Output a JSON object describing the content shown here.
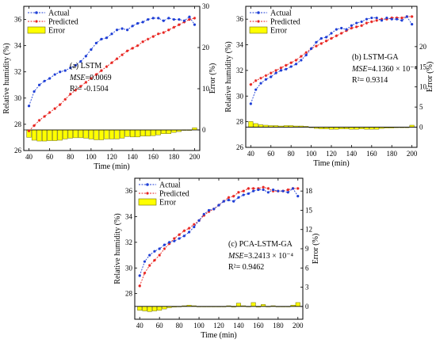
{
  "chart_data": [
    {
      "type": "line",
      "panel_label": "(a) LSTM",
      "mse_label": "MSE",
      "mse_value": "=0.0069",
      "r2_text": "R²= -0.1504",
      "xlabel": "Time (min)",
      "ylabel": "Relative humidity (%)",
      "y2label": "Error (%)",
      "xlim": [
        35,
        205
      ],
      "ylim": [
        26,
        37
      ],
      "y2lim": [
        -5,
        30
      ],
      "xticks": [
        40,
        60,
        80,
        100,
        120,
        140,
        160,
        180,
        200
      ],
      "yticks": [
        26,
        28,
        30,
        32,
        34,
        36
      ],
      "y2ticks": [
        0,
        10,
        20,
        30
      ],
      "legend": [
        "Actual",
        "Predicted",
        "Error"
      ],
      "colors": {
        "actual": "#1f3fd6",
        "predicted": "#e8231f",
        "error_fill": "#ffff00",
        "error_stroke": "#6b6b00"
      },
      "x": [
        40,
        45,
        50,
        55,
        60,
        65,
        70,
        75,
        80,
        85,
        90,
        95,
        100,
        105,
        110,
        115,
        120,
        125,
        130,
        135,
        140,
        145,
        150,
        155,
        160,
        165,
        170,
        175,
        180,
        185,
        190,
        195,
        200
      ],
      "series": [
        {
          "name": "Actual",
          "values": [
            29.4,
            30.5,
            31.0,
            31.3,
            31.5,
            31.8,
            32.0,
            32.1,
            32.3,
            32.5,
            32.8,
            33.2,
            33.7,
            34.2,
            34.5,
            34.6,
            34.9,
            35.2,
            35.3,
            35.2,
            35.5,
            35.7,
            35.8,
            36.0,
            36.1,
            36.1,
            35.9,
            36.1,
            36.0,
            36.0,
            35.9,
            36.2,
            35.6
          ]
        },
        {
          "name": "Predicted",
          "values": [
            27.5,
            27.9,
            28.3,
            28.6,
            28.9,
            29.2,
            29.5,
            29.9,
            30.3,
            30.6,
            30.9,
            31.2,
            31.5,
            31.8,
            32.1,
            32.4,
            32.7,
            33.0,
            33.3,
            33.6,
            33.8,
            34.0,
            34.3,
            34.5,
            34.7,
            34.9,
            35.0,
            35.2,
            35.4,
            35.6,
            35.8,
            36.0,
            36.1
          ]
        },
        {
          "name": "Error",
          "values": [
            -1.8,
            -2.5,
            -2.7,
            -2.7,
            -2.6,
            -2.6,
            -2.5,
            -2.2,
            -2.0,
            -1.9,
            -1.9,
            -2.0,
            -2.2,
            -2.4,
            -2.4,
            -2.2,
            -2.2,
            -2.2,
            -2.0,
            -1.6,
            -1.7,
            -1.7,
            -1.5,
            -1.5,
            -1.4,
            -1.2,
            -0.9,
            -0.9,
            -0.6,
            -0.4,
            -0.1,
            -0.1,
            0.5
          ]
        }
      ]
    },
    {
      "type": "line",
      "panel_label": "(b) LSTM-GA",
      "mse_label": "MSE",
      "mse_value": "=4.1360 × 10⁻⁴",
      "r2_text": "R²= 0.9314",
      "xlabel": "Time (min)",
      "ylabel": "Relative humidity (%)",
      "y2label": "Error (%)",
      "xlim": [
        35,
        205
      ],
      "ylim": [
        26,
        37
      ],
      "y2lim": [
        -5,
        30
      ],
      "xticks": [
        40,
        60,
        80,
        100,
        120,
        140,
        160,
        180,
        200
      ],
      "yticks": [
        26,
        28,
        30,
        32,
        34,
        36
      ],
      "y2ticks": [
        0,
        5,
        10,
        15,
        20
      ],
      "legend": [
        "Actual",
        "Predicted",
        "Error"
      ],
      "colors": {
        "actual": "#1f3fd6",
        "predicted": "#e8231f",
        "error_fill": "#ffff00",
        "error_stroke": "#6b6b00"
      },
      "x": [
        40,
        45,
        50,
        55,
        60,
        65,
        70,
        75,
        80,
        85,
        90,
        95,
        100,
        105,
        110,
        115,
        120,
        125,
        130,
        135,
        140,
        145,
        150,
        155,
        160,
        165,
        170,
        175,
        180,
        185,
        190,
        195,
        200
      ],
      "series": [
        {
          "name": "Actual",
          "values": [
            29.4,
            30.5,
            31.0,
            31.3,
            31.5,
            31.8,
            32.0,
            32.1,
            32.3,
            32.5,
            32.8,
            33.2,
            33.7,
            34.2,
            34.5,
            34.6,
            34.9,
            35.2,
            35.3,
            35.2,
            35.5,
            35.7,
            35.8,
            36.0,
            36.1,
            36.1,
            35.9,
            36.1,
            36.0,
            36.0,
            35.9,
            36.2,
            35.6
          ]
        },
        {
          "name": "Predicted",
          "values": [
            30.9,
            31.2,
            31.4,
            31.6,
            31.8,
            32.0,
            32.2,
            32.4,
            32.6,
            32.8,
            33.1,
            33.4,
            33.7,
            33.9,
            34.1,
            34.3,
            34.5,
            34.7,
            34.9,
            35.1,
            35.3,
            35.4,
            35.5,
            35.7,
            35.8,
            35.9,
            36.0,
            36.0,
            36.1,
            36.1,
            36.1,
            36.2,
            36.2
          ]
        },
        {
          "name": "Error",
          "values": [
            1.4,
            0.9,
            0.6,
            0.5,
            0.4,
            0.4,
            0.3,
            0.4,
            0.4,
            0.3,
            0.3,
            0.2,
            0.0,
            -0.3,
            -0.4,
            -0.4,
            -0.5,
            -0.5,
            -0.4,
            -0.4,
            -0.5,
            -0.5,
            -0.4,
            -0.5,
            -0.5,
            -0.5,
            -0.3,
            -0.2,
            -0.2,
            -0.1,
            -0.1,
            0.0,
            0.5
          ]
        }
      ]
    },
    {
      "type": "line",
      "panel_label": "(c) PCA-LSTM-GA",
      "mse_label": "MSE",
      "mse_value": "=3.2413 × 10⁻⁴",
      "r2_text": "R²= 0.9462",
      "xlabel": "Time (min)",
      "ylabel": "Relative humidity (%)",
      "y2label": "Error (%)",
      "xlim": [
        35,
        205
      ],
      "ylim": [
        26,
        37
      ],
      "y2lim": [
        -2,
        20
      ],
      "xticks": [
        40,
        60,
        80,
        100,
        120,
        140,
        160,
        180,
        200
      ],
      "yticks": [
        28,
        30,
        32,
        34,
        36
      ],
      "y2ticks": [
        0,
        3,
        6,
        9,
        12,
        15,
        18
      ],
      "legend": [
        "Actual",
        "Predicted",
        "Error"
      ],
      "colors": {
        "actual": "#1f3fd6",
        "predicted": "#e8231f",
        "error_fill": "#ffff00",
        "error_stroke": "#6b6b00"
      },
      "x": [
        40,
        45,
        50,
        55,
        60,
        65,
        70,
        75,
        80,
        85,
        90,
        95,
        100,
        105,
        110,
        115,
        120,
        125,
        130,
        135,
        140,
        145,
        150,
        155,
        160,
        165,
        170,
        175,
        180,
        185,
        190,
        195,
        200
      ],
      "series": [
        {
          "name": "Actual",
          "values": [
            29.4,
            30.5,
            31.0,
            31.3,
            31.5,
            31.8,
            32.0,
            32.1,
            32.3,
            32.5,
            32.8,
            33.2,
            33.7,
            34.2,
            34.5,
            34.6,
            34.9,
            35.2,
            35.3,
            35.2,
            35.5,
            35.7,
            35.8,
            36.0,
            36.1,
            36.1,
            35.9,
            36.1,
            36.0,
            36.0,
            35.9,
            36.2,
            35.6
          ]
        },
        {
          "name": "Predicted",
          "values": [
            28.6,
            29.6,
            30.2,
            30.6,
            31.0,
            31.5,
            31.9,
            32.3,
            32.6,
            32.9,
            33.1,
            33.4,
            33.7,
            34.1,
            34.4,
            34.6,
            34.9,
            35.2,
            35.5,
            35.6,
            35.9,
            36.0,
            36.2,
            36.2,
            36.2,
            36.3,
            36.2,
            36.0,
            36.0,
            36.0,
            36.1,
            36.2,
            36.2
          ]
        },
        {
          "name": "Error",
          "values": [
            -0.6,
            -0.7,
            -0.8,
            -0.7,
            -0.6,
            -0.4,
            -0.2,
            -0.1,
            0.0,
            0.1,
            0.2,
            0.1,
            0.0,
            0.0,
            0.0,
            0.0,
            0.0,
            0.0,
            0.1,
            -0.1,
            0.5,
            0.1,
            0.0,
            0.6,
            -0.1,
            0.3,
            0.0,
            0.1,
            0.0,
            0.0,
            0.0,
            0.2,
            0.6
          ]
        }
      ]
    }
  ]
}
